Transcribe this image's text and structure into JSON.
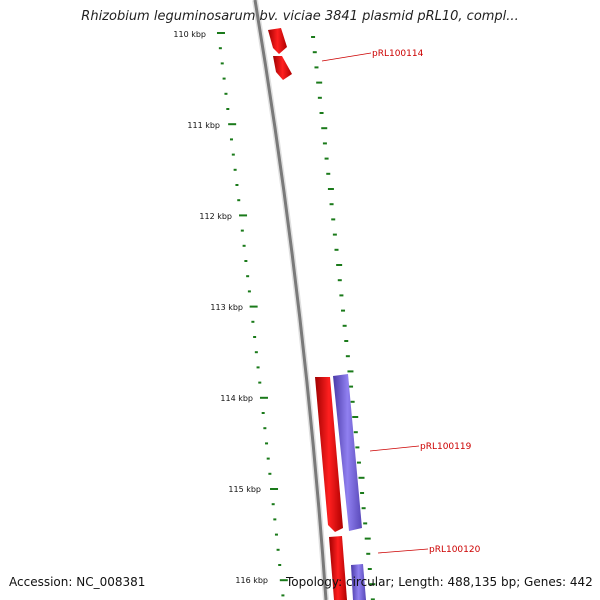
{
  "map": {
    "title": "Rhizobium leguminosarum bv. viciae 3841 plasmid pRL10, compl...",
    "accession": "Accession: NC_008381",
    "topology": "Topology: circular",
    "length": "Length: 488,135 bp",
    "genes": "Genes: 442",
    "separator": "; "
  },
  "scale": {
    "tick_labels": [
      "110 kbp",
      "111 kbp",
      "112 kbp",
      "113 kbp",
      "114 kbp",
      "115 kbp",
      "116 kbp"
    ]
  },
  "features": {
    "gene_labels": [
      "pRL100114",
      "pRL100119",
      "pRL100120"
    ],
    "colors": {
      "forward_cds": "#ff0000",
      "reverse_cds": "#7b68d8",
      "backbone": "#8a8a8a",
      "gc_marks": "#1a7a1a",
      "label": "#cc0000"
    }
  }
}
